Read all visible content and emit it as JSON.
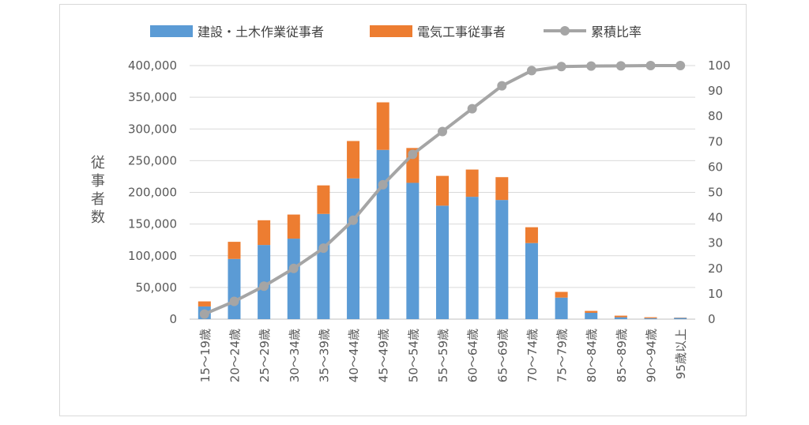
{
  "chart_data": {
    "type": "bar",
    "stacked": true,
    "categories": [
      "15～19歳",
      "20～24歳",
      "25～29歳",
      "30～34歳",
      "35～39歳",
      "40～44歳",
      "45～49歳",
      "50～54歳",
      "55～59歳",
      "60～64歳",
      "65～69歳",
      "70～74歳",
      "75～79歳",
      "80～84歳",
      "85～89歳",
      "90～94歳",
      "95歳以上"
    ],
    "series": [
      {
        "name": "建設・土木作業従事者",
        "color": "#5b9bd5",
        "axis": "left",
        "values": [
          20000,
          95000,
          117000,
          127000,
          166000,
          222000,
          267000,
          215000,
          179000,
          193000,
          188000,
          120000,
          34000,
          10000,
          3000,
          1500,
          2000
        ]
      },
      {
        "name": "電気工事従事者",
        "color": "#ed7d31",
        "axis": "left",
        "values": [
          8000,
          27000,
          39000,
          38000,
          45000,
          59000,
          75000,
          55000,
          47000,
          43000,
          36000,
          25000,
          9000,
          3000,
          2500,
          1500,
          500
        ]
      },
      {
        "name": "累積比率",
        "color": "#a5a5a5",
        "type": "line",
        "axis": "right",
        "values": [
          2,
          7,
          13,
          20,
          28,
          39,
          53,
          65,
          74,
          83,
          92,
          98,
          99.6,
          99.8,
          99.9,
          100,
          100
        ]
      }
    ],
    "ylabel": "従事者数",
    "ylim": [
      0,
      400000
    ],
    "yticks": [
      "0",
      "50,000",
      "100,000",
      "150,000",
      "200,000",
      "250,000",
      "300,000",
      "350,000",
      "400,000"
    ],
    "y2lim": [
      0,
      100
    ],
    "y2ticks": [
      "0",
      "10",
      "20",
      "30",
      "40",
      "50",
      "60",
      "70",
      "80",
      "90",
      "100"
    ],
    "grid": true,
    "legend_position": "top"
  }
}
